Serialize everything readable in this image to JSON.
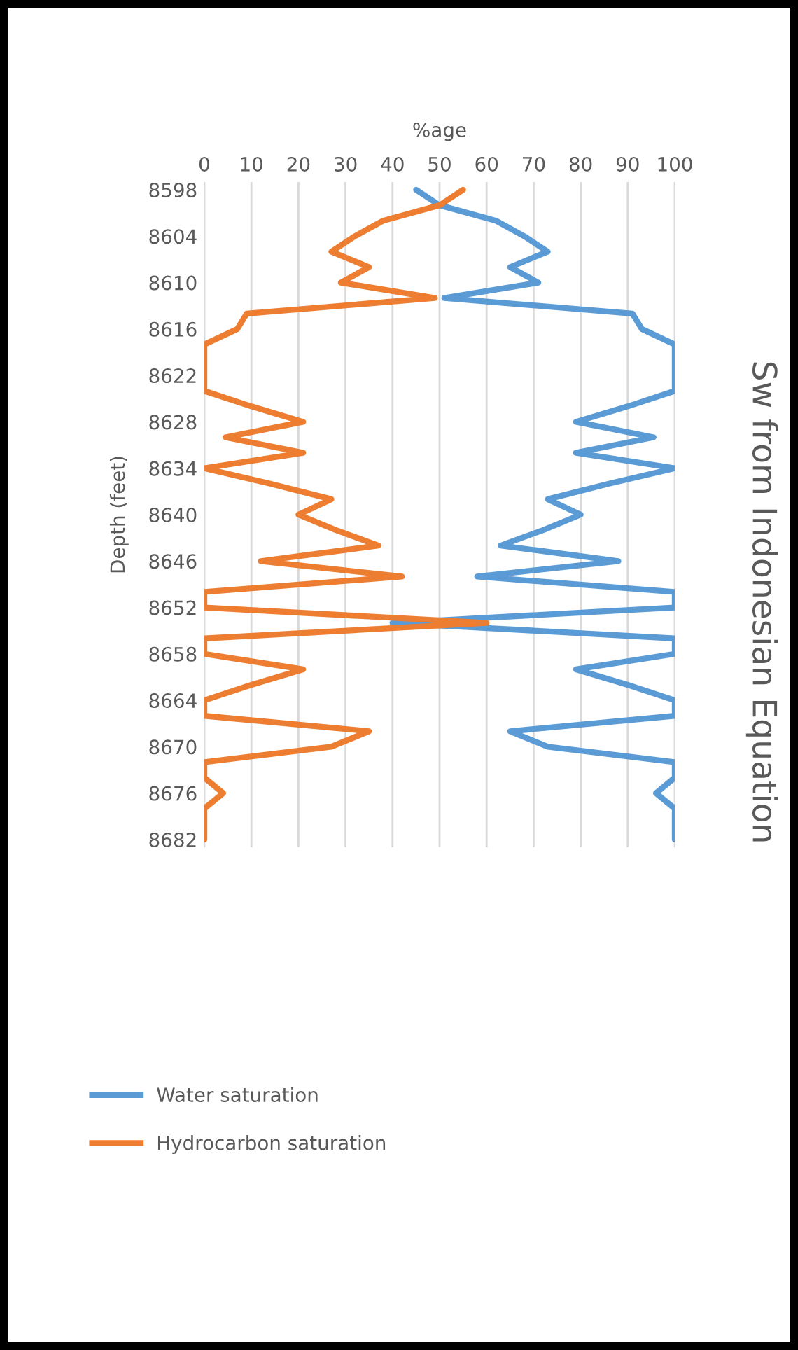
{
  "chart_data": {
    "type": "line",
    "title": "Sw from Indonesian Equation",
    "xlabel": "%age",
    "ylabel": "Depth (feet)",
    "xlim": [
      0,
      100
    ],
    "xticks": [
      0,
      10,
      20,
      30,
      40,
      50,
      60,
      70,
      80,
      90,
      100
    ],
    "ylim": [
      8683,
      8597
    ],
    "yticks": [
      8598,
      8604,
      8610,
      8616,
      8622,
      8628,
      8634,
      8640,
      8646,
      8652,
      8658,
      8664,
      8670,
      8676,
      8682
    ],
    "grid": "x",
    "legend": "bottom",
    "orientation": "horizontal",
    "x": [
      8598,
      8600,
      8602,
      8604,
      8606,
      8608,
      8610,
      8612,
      8614,
      8616,
      8618,
      8620,
      8622,
      8624,
      8626,
      8628,
      8630,
      8632,
      8634,
      8636,
      8638,
      8640,
      8642,
      8644,
      8646,
      8648,
      8650,
      8652,
      8654,
      8656,
      8658,
      8660,
      8662,
      8664,
      8666,
      8668,
      8670,
      8672,
      8674,
      8676,
      8678,
      8680,
      8682
    ],
    "series": [
      {
        "name": "Water saturation",
        "color": "#5b9bd5",
        "values": [
          45,
          50,
          62,
          68,
          73,
          65,
          71,
          51,
          91,
          93,
          100,
          100,
          100,
          100,
          90,
          79,
          95.5,
          79,
          100,
          86,
          73,
          80,
          72,
          63,
          88,
          58,
          100,
          100,
          40,
          100,
          100,
          79,
          90,
          100,
          100,
          65,
          73,
          100,
          100,
          96,
          100,
          100,
          100
        ]
      },
      {
        "name": "Hydrocarbon saturation",
        "color": "#ed7d31",
        "values": [
          55,
          50,
          38,
          32,
          27,
          35,
          29,
          49,
          9,
          7,
          0,
          0,
          0,
          0,
          10,
          21,
          4.5,
          21,
          0,
          14,
          27,
          20,
          28,
          37,
          12,
          42,
          0,
          0,
          60,
          0,
          0,
          21,
          10,
          0,
          0,
          35,
          27,
          0,
          0,
          4,
          0,
          0,
          0
        ]
      }
    ]
  }
}
